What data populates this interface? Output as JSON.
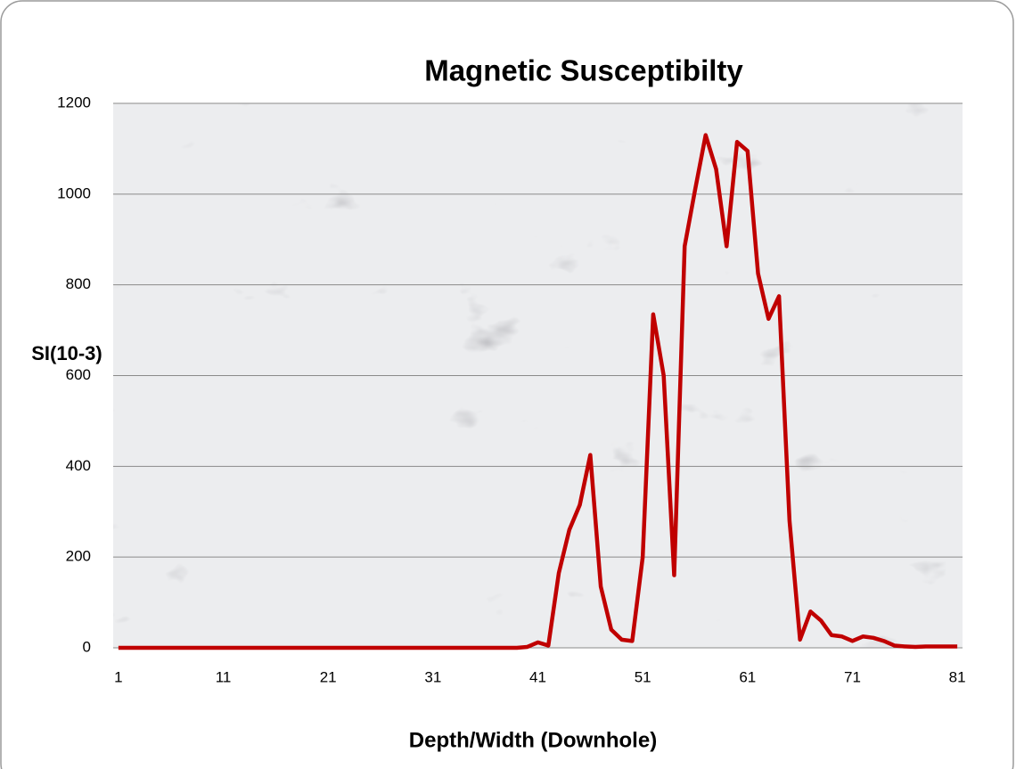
{
  "chart_data": {
    "type": "line",
    "title": "Magnetic Susceptibilty",
    "x_label": "Depth/Width (Downhole)",
    "y_label": "SI(10-3)",
    "x": [
      1,
      2,
      3,
      4,
      5,
      6,
      7,
      8,
      9,
      10,
      11,
      12,
      13,
      14,
      15,
      16,
      17,
      18,
      19,
      20,
      21,
      22,
      23,
      24,
      25,
      26,
      27,
      28,
      29,
      30,
      31,
      32,
      33,
      34,
      35,
      36,
      37,
      38,
      39,
      40,
      41,
      42,
      43,
      44,
      45,
      46,
      47,
      48,
      49,
      50,
      51,
      52,
      53,
      54,
      55,
      56,
      57,
      58,
      59,
      60,
      61,
      62,
      63,
      64,
      65,
      66,
      67,
      68,
      69,
      70,
      71,
      72,
      73,
      74,
      75,
      76,
      77,
      78,
      79,
      80,
      81
    ],
    "values": [
      0,
      0,
      0,
      0,
      0,
      0,
      0,
      0,
      0,
      0,
      0,
      0,
      0,
      0,
      0,
      0,
      0,
      0,
      0,
      0,
      0,
      0,
      0,
      0,
      0,
      0,
      0,
      0,
      0,
      0,
      0,
      0,
      0,
      0,
      0,
      0,
      0,
      0,
      0,
      2,
      12,
      5,
      165,
      260,
      315,
      425,
      135,
      40,
      18,
      15,
      200,
      735,
      600,
      160,
      885,
      1010,
      1130,
      1055,
      885,
      1115,
      1095,
      825,
      725,
      775,
      280,
      18,
      80,
      60,
      28,
      25,
      15,
      25,
      22,
      15,
      5,
      3,
      2,
      3,
      3,
      3,
      3
    ],
    "color": "#c00000",
    "xlim": [
      0.5,
      81.5
    ],
    "xticks": [
      1,
      11,
      21,
      31,
      41,
      51,
      61,
      71,
      81
    ],
    "ylim": [
      0,
      1200
    ],
    "yticks": [
      0,
      200,
      400,
      600,
      800,
      1000,
      1200
    ],
    "grid": true
  }
}
